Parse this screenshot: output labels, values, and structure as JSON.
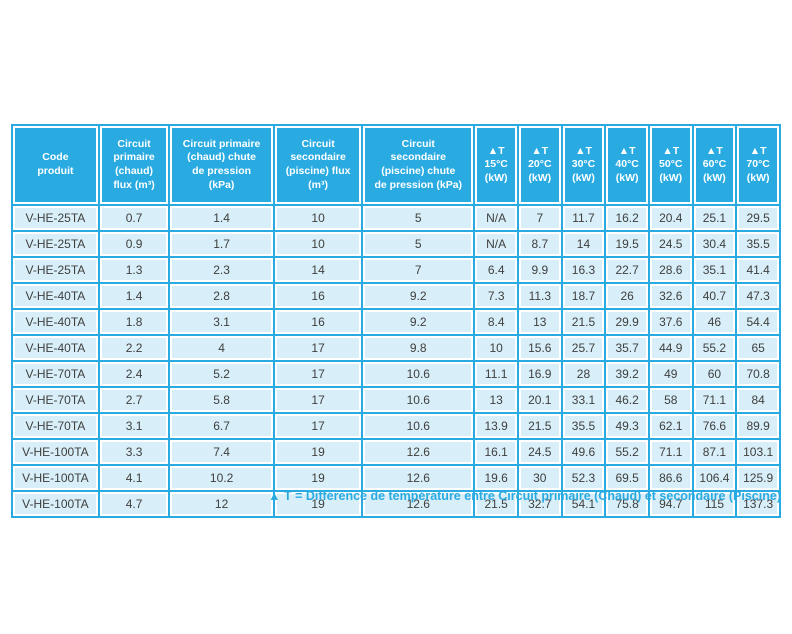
{
  "table": {
    "columns": [
      "Code\nproduit",
      "Circuit\nprimaire\n(chaud)\nflux (m³)",
      "Circuit primaire\n(chaud) chute\nde pression\n(kPa)",
      "Circuit\nsecondaire\n(piscine) flux\n(m³)",
      "Circuit\nsecondaire\n(piscine) chute\nde pression (kPa)",
      "▲T\n15°C\n(kW)",
      "▲T\n20°C\n(kW)",
      "▲T\n30°C\n(kW)",
      "▲T\n40°C\n(kW)",
      "▲T\n50°C\n(kW)",
      "▲T\n60°C\n(kW)",
      "▲T\n70°C\n(kW)"
    ],
    "rows": [
      [
        "V-HE-25TA",
        "0.7",
        "1.4",
        "10",
        "5",
        "N/A",
        "7",
        "11.7",
        "16.2",
        "20.4",
        "25.1",
        "29.5"
      ],
      [
        "V-HE-25TA",
        "0.9",
        "1.7",
        "10",
        "5",
        "N/A",
        "8.7",
        "14",
        "19.5",
        "24.5",
        "30.4",
        "35.5"
      ],
      [
        "V-HE-25TA",
        "1.3",
        "2.3",
        "14",
        "7",
        "6.4",
        "9.9",
        "16.3",
        "22.7",
        "28.6",
        "35.1",
        "41.4"
      ],
      [
        "V-HE-40TA",
        "1.4",
        "2.8",
        "16",
        "9.2",
        "7.3",
        "11.3",
        "18.7",
        "26",
        "32.6",
        "40.7",
        "47.3"
      ],
      [
        "V-HE-40TA",
        "1.8",
        "3.1",
        "16",
        "9.2",
        "8.4",
        "13",
        "21.5",
        "29.9",
        "37.6",
        "46",
        "54.4"
      ],
      [
        "V-HE-40TA",
        "2.2",
        "4",
        "17",
        "9.8",
        "10",
        "15.6",
        "25.7",
        "35.7",
        "44.9",
        "55.2",
        "65"
      ],
      [
        "V-HE-70TA",
        "2.4",
        "5.2",
        "17",
        "10.6",
        "11.1",
        "16.9",
        "28",
        "39.2",
        "49",
        "60",
        "70.8"
      ],
      [
        "V-HE-70TA",
        "2.7",
        "5.8",
        "17",
        "10.6",
        "13",
        "20.1",
        "33.1",
        "46.2",
        "58",
        "71.1",
        "84"
      ],
      [
        "V-HE-70TA",
        "3.1",
        "6.7",
        "17",
        "10.6",
        "13.9",
        "21.5",
        "35.5",
        "49.3",
        "62.1",
        "76.6",
        "89.9"
      ],
      [
        "V-HE-100TA",
        "3.3",
        "7.4",
        "19",
        "12.6",
        "16.1",
        "24.5",
        "49.6",
        "55.2",
        "71.1",
        "87.1",
        "103.1"
      ],
      [
        "V-HE-100TA",
        "4.1",
        "10.2",
        "19",
        "12.6",
        "19.6",
        "30",
        "52.3",
        "69.5",
        "86.6",
        "106.4",
        "125.9"
      ],
      [
        "V-HE-100TA",
        "4.7",
        "12",
        "19",
        "12.6",
        "21.5",
        "32.7",
        "54.1",
        "75.8",
        "94.7",
        "115",
        "137.3"
      ]
    ]
  },
  "footnote": "▲ T = Différence de température entre Circuit primaire (Chaud) et secondaire (Piscine)",
  "colors": {
    "header_bg": "#29ABE2",
    "header_text": "#FFFFFF",
    "cell_bg": "#D8EEF8",
    "cell_text": "#3F3F3E",
    "cell_border": "#FFFFFF",
    "grid_bg": "#29ABE2",
    "footnote_text": "#29ABE2"
  }
}
